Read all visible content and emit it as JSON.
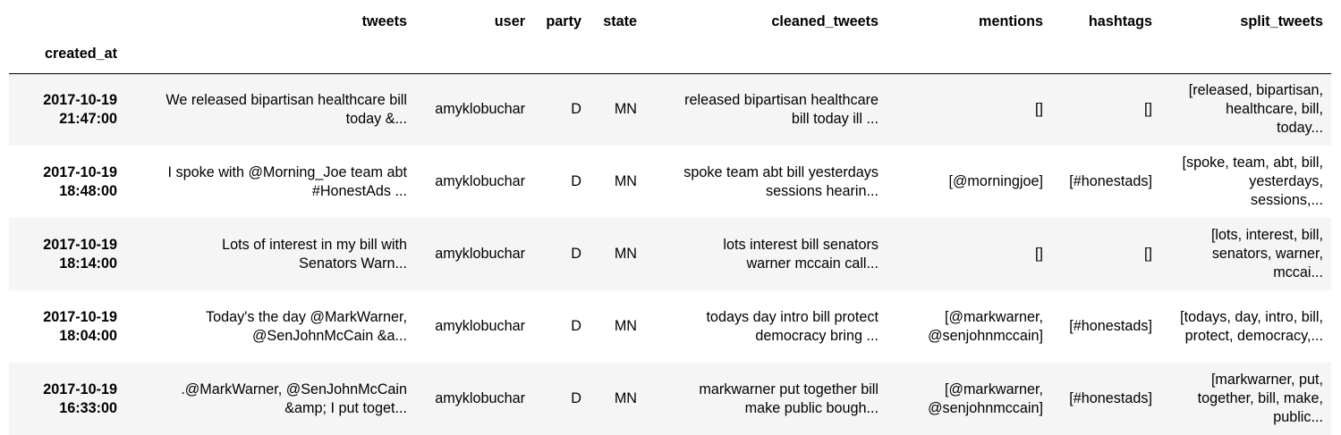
{
  "table": {
    "columns": [
      "tweets",
      "user",
      "party",
      "state",
      "cleaned_tweets",
      "mentions",
      "hashtags",
      "split_tweets"
    ],
    "index_name": "created_at",
    "rows": [
      {
        "created_at_date": "2017-10-19",
        "created_at_time": "21:47:00",
        "tweets_l1": "We released bipartisan healthcare bill",
        "tweets_l2": "today &...",
        "user": "amyklobuchar",
        "party": "D",
        "state": "MN",
        "cleaned_l1": "released bipartisan healthcare",
        "cleaned_l2": "bill today ill ...",
        "mentions_l1": "[]",
        "mentions_l2": "",
        "hashtags": "[]",
        "split_l1": "[released, bipartisan,",
        "split_l2": "healthcare, bill,",
        "split_l3": "today..."
      },
      {
        "created_at_date": "2017-10-19",
        "created_at_time": "18:48:00",
        "tweets_l1": "I spoke with @Morning_Joe team abt",
        "tweets_l2": "#HonestAds ...",
        "user": "amyklobuchar",
        "party": "D",
        "state": "MN",
        "cleaned_l1": "spoke team abt bill yesterdays",
        "cleaned_l2": "sessions hearin...",
        "mentions_l1": "[@morningjoe]",
        "mentions_l2": "",
        "hashtags": "[#honestads]",
        "split_l1": "[spoke, team, abt, bill,",
        "split_l2": "yesterdays,",
        "split_l3": "sessions,..."
      },
      {
        "created_at_date": "2017-10-19",
        "created_at_time": "18:14:00",
        "tweets_l1": "Lots of interest in my bill with",
        "tweets_l2": "Senators Warn...",
        "user": "amyklobuchar",
        "party": "D",
        "state": "MN",
        "cleaned_l1": "lots interest bill senators",
        "cleaned_l2": "warner mccain call...",
        "mentions_l1": "[]",
        "mentions_l2": "",
        "hashtags": "[]",
        "split_l1": "[lots, interest, bill,",
        "split_l2": "senators, warner,",
        "split_l3": "mccai..."
      },
      {
        "created_at_date": "2017-10-19",
        "created_at_time": "18:04:00",
        "tweets_l1": "Today's the day @MarkWarner,",
        "tweets_l2": "@SenJohnMcCain &a...",
        "user": "amyklobuchar",
        "party": "D",
        "state": "MN",
        "cleaned_l1": "todays day intro bill protect",
        "cleaned_l2": "democracy bring ...",
        "mentions_l1": "[@markwarner,",
        "mentions_l2": "@senjohnmccain]",
        "hashtags": "[#honestads]",
        "split_l1": "[todays, day, intro, bill,",
        "split_l2": "protect, democracy,...",
        "split_l3": ""
      },
      {
        "created_at_date": "2017-10-19",
        "created_at_time": "16:33:00",
        "tweets_l1": ".@MarkWarner, @SenJohnMcCain",
        "tweets_l2": "&amp; I put toget...",
        "user": "amyklobuchar",
        "party": "D",
        "state": "MN",
        "cleaned_l1": "markwarner put together bill",
        "cleaned_l2": "make public bough...",
        "mentions_l1": "[@markwarner,",
        "mentions_l2": "@senjohnmccain]",
        "hashtags": "[#honestads]",
        "split_l1": "[markwarner, put,",
        "split_l2": "together, bill, make,",
        "split_l3": "public..."
      }
    ]
  }
}
